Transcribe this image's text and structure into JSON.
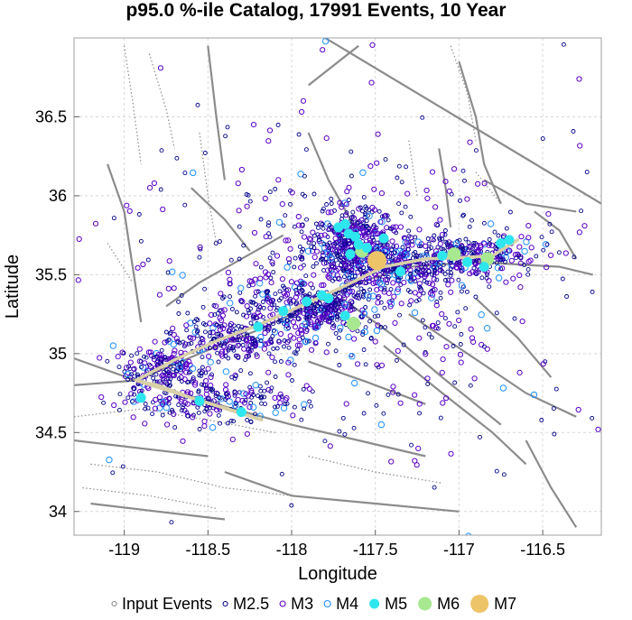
{
  "chart_data": {
    "type": "scatter",
    "title": "p95.0 %-ile Catalog, 17991 Events, 10 Year",
    "xlabel": "Longitude",
    "ylabel": "Latitude",
    "xlim": [
      -119.3,
      -116.15
    ],
    "ylim": [
      33.85,
      37.0
    ],
    "xticks": [
      -119,
      -118.5,
      -118,
      -117.5,
      -117,
      -116.5
    ],
    "yticks": [
      34,
      34.5,
      35,
      35.5,
      36,
      36.5
    ],
    "xtick_labels": [
      "-119",
      "-118.5",
      "-118",
      "-117.5",
      "-117",
      "-116.5"
    ],
    "ytick_labels": [
      "34",
      "34.5",
      "35",
      "35.5",
      "36",
      "36.5"
    ],
    "grid": true,
    "legend": {
      "placement": "bottom",
      "entries": [
        {
          "label": "Input Events",
          "color": "#888888",
          "filled": false
        },
        {
          "label": "M2.5",
          "color": "#00008b",
          "filled": false
        },
        {
          "label": "M3",
          "color": "#5a00c8",
          "filled": false
        },
        {
          "label": "M4",
          "color": "#1e90ff",
          "filled": false
        },
        {
          "label": "M5",
          "color": "#2ee6ee",
          "filled": true
        },
        {
          "label": "M6",
          "color": "#a8e890",
          "filled": true
        },
        {
          "label": "M7",
          "color": "#eec468",
          "filled": true
        }
      ]
    },
    "rupture_trace": [
      [
        -118.93,
        34.83
      ],
      [
        -118.8,
        34.8
      ],
      [
        -118.6,
        34.72
      ],
      [
        -118.38,
        34.65
      ],
      [
        -118.18,
        34.58
      ],
      [
        -118.93,
        34.83
      ],
      [
        -118.7,
        34.96
      ],
      [
        -118.45,
        35.08
      ],
      [
        -118.2,
        35.18
      ],
      [
        -117.95,
        35.3
      ],
      [
        -117.7,
        35.42
      ],
      [
        -117.45,
        35.55
      ],
      [
        -117.2,
        35.6
      ],
      [
        -116.95,
        35.61
      ],
      [
        -116.8,
        35.62
      ],
      [
        -116.65,
        35.72
      ]
    ],
    "large_events": [
      {
        "lon": -117.49,
        "lat": 35.59,
        "class": "M7"
      },
      {
        "lon": -117.58,
        "lat": 35.65,
        "class": "M6"
      },
      {
        "lon": -117.63,
        "lat": 35.19,
        "class": "M6"
      },
      {
        "lon": -116.83,
        "lat": 35.6,
        "class": "M6"
      },
      {
        "lon": -117.03,
        "lat": 35.63,
        "class": "M6"
      },
      {
        "lon": -117.68,
        "lat": 35.82,
        "class": "M5"
      },
      {
        "lon": -117.66,
        "lat": 35.76,
        "class": "M5"
      },
      {
        "lon": -117.6,
        "lat": 35.69,
        "class": "M5"
      },
      {
        "lon": -117.55,
        "lat": 35.67,
        "class": "M5"
      },
      {
        "lon": -117.72,
        "lat": 35.8,
        "class": "M5"
      },
      {
        "lon": -117.62,
        "lat": 35.74,
        "class": "M5"
      },
      {
        "lon": -117.91,
        "lat": 35.33,
        "class": "M5"
      },
      {
        "lon": -117.82,
        "lat": 35.37,
        "class": "M5"
      },
      {
        "lon": -117.78,
        "lat": 35.35,
        "class": "M5"
      },
      {
        "lon": -117.68,
        "lat": 35.24,
        "class": "M5"
      },
      {
        "lon": -116.85,
        "lat": 35.55,
        "class": "M5"
      },
      {
        "lon": -116.7,
        "lat": 35.72,
        "class": "M5"
      },
      {
        "lon": -116.75,
        "lat": 35.7,
        "class": "M5"
      },
      {
        "lon": -117.35,
        "lat": 35.52,
        "class": "M5"
      },
      {
        "lon": -118.9,
        "lat": 34.72,
        "class": "M5"
      },
      {
        "lon": -118.55,
        "lat": 34.7,
        "class": "M5"
      },
      {
        "lon": -118.3,
        "lat": 34.63,
        "class": "M5"
      },
      {
        "lon": -118.2,
        "lat": 35.17,
        "class": "M5"
      },
      {
        "lon": -118.05,
        "lat": 35.27,
        "class": "M5"
      },
      {
        "lon": -117.65,
        "lat": 35.63,
        "class": "M5"
      },
      {
        "lon": -117.45,
        "lat": 35.73,
        "class": "M5"
      },
      {
        "lon": -117.1,
        "lat": 35.62,
        "class": "M5"
      },
      {
        "lon": -116.95,
        "lat": 35.58,
        "class": "M5"
      }
    ],
    "clusters": [
      {
        "lon": -117.65,
        "lat": 35.68,
        "slon": 0.14,
        "slat": 0.13,
        "n": 420
      },
      {
        "lon": -117.4,
        "lat": 35.55,
        "slon": 0.2,
        "slat": 0.08,
        "n": 240
      },
      {
        "lon": -116.95,
        "lat": 35.62,
        "slon": 0.22,
        "slat": 0.07,
        "n": 260
      },
      {
        "lon": -117.9,
        "lat": 35.3,
        "slon": 0.22,
        "slat": 0.09,
        "n": 240
      },
      {
        "lon": -118.35,
        "lat": 35.1,
        "slon": 0.22,
        "slat": 0.08,
        "n": 220
      },
      {
        "lon": -118.75,
        "lat": 34.9,
        "slon": 0.15,
        "slat": 0.07,
        "n": 170
      },
      {
        "lon": -118.5,
        "lat": 34.7,
        "slon": 0.25,
        "slat": 0.06,
        "n": 200
      },
      {
        "lon": -117.75,
        "lat": 35.28,
        "slon": 0.09,
        "slat": 0.07,
        "n": 70
      },
      {
        "lon": -117.7,
        "lat": 35.45,
        "slon": 0.5,
        "slat": 0.42,
        "n": 320
      },
      {
        "lon": -117.5,
        "lat": 35.35,
        "slon": 0.9,
        "slat": 0.6,
        "n": 260
      }
    ],
    "faults": {
      "color": "#8c8c8c",
      "solid": [
        [
          [
            -118.93,
            34.83
          ],
          [
            -118.6,
            34.73
          ],
          [
            -118.35,
            34.65
          ],
          [
            -118.0,
            34.55
          ],
          [
            -117.6,
            34.45
          ],
          [
            -117.2,
            34.35
          ]
        ],
        [
          [
            -118.93,
            34.83
          ],
          [
            -118.55,
            35.0
          ],
          [
            -118.2,
            35.15
          ],
          [
            -117.9,
            35.3
          ],
          [
            -117.6,
            35.45
          ],
          [
            -117.3,
            35.55
          ],
          [
            -116.9,
            35.58
          ],
          [
            -116.4,
            35.55
          ],
          [
            -116.2,
            35.5
          ]
        ],
        [
          [
            -119.3,
            34.8
          ],
          [
            -118.93,
            34.83
          ]
        ],
        [
          [
            -119.3,
            34.97
          ],
          [
            -118.93,
            34.83
          ]
        ],
        [
          [
            -117.9,
            36.4
          ],
          [
            -117.78,
            36.1
          ],
          [
            -117.7,
            35.95
          ],
          [
            -117.6,
            35.75
          ]
        ],
        [
          [
            -117.12,
            36.3
          ],
          [
            -117.08,
            36.05
          ],
          [
            -117.05,
            35.8
          ]
        ],
        [
          [
            -117.0,
            36.85
          ],
          [
            -116.9,
            36.5
          ],
          [
            -116.85,
            36.2
          ],
          [
            -116.75,
            35.95
          ]
        ],
        [
          [
            -116.55,
            35.9
          ],
          [
            -116.4,
            35.78
          ],
          [
            -116.3,
            35.6
          ]
        ],
        [
          [
            -117.7,
            35.35
          ],
          [
            -117.4,
            35.12
          ],
          [
            -117.1,
            34.85
          ],
          [
            -116.75,
            34.55
          ]
        ],
        [
          [
            -117.45,
            35.05
          ],
          [
            -117.1,
            34.75
          ],
          [
            -116.8,
            34.5
          ],
          [
            -116.6,
            34.3
          ]
        ],
        [
          [
            -117.3,
            35.25
          ],
          [
            -116.95,
            35.0
          ],
          [
            -116.6,
            34.75
          ],
          [
            -116.3,
            34.6
          ]
        ],
        [
          [
            -116.9,
            35.35
          ],
          [
            -116.65,
            35.1
          ],
          [
            -116.45,
            34.85
          ]
        ],
        [
          [
            -118.75,
            35.3
          ],
          [
            -118.55,
            35.45
          ],
          [
            -118.3,
            35.6
          ],
          [
            -118.05,
            35.75
          ]
        ],
        [
          [
            -118.6,
            36.05
          ],
          [
            -118.4,
            35.85
          ],
          [
            -118.25,
            35.65
          ]
        ],
        [
          [
            -119.1,
            36.2
          ],
          [
            -119.0,
            35.9
          ],
          [
            -118.95,
            35.55
          ],
          [
            -118.9,
            35.2
          ]
        ],
        [
          [
            -118.5,
            36.95
          ],
          [
            -118.45,
            36.5
          ],
          [
            -118.4,
            36.1
          ]
        ],
        [
          [
            -117.9,
            36.7
          ],
          [
            -117.6,
            36.95
          ]
        ],
        [
          [
            -116.85,
            36.1
          ],
          [
            -116.6,
            35.95
          ],
          [
            -116.3,
            35.9
          ]
        ],
        [
          [
            -118.4,
            34.25
          ],
          [
            -118.0,
            34.1
          ],
          [
            -117.5,
            34.05
          ],
          [
            -117.0,
            34.0
          ]
        ],
        [
          [
            -119.3,
            34.45
          ],
          [
            -118.9,
            34.4
          ],
          [
            -118.5,
            34.35
          ]
        ],
        [
          [
            -119.2,
            34.05
          ],
          [
            -118.8,
            34.0
          ],
          [
            -118.4,
            33.95
          ]
        ],
        [
          [
            -116.6,
            34.45
          ],
          [
            -116.45,
            34.15
          ],
          [
            -116.3,
            33.9
          ]
        ],
        [
          [
            -117.9,
            34.95
          ],
          [
            -117.55,
            34.82
          ],
          [
            -117.2,
            34.68
          ]
        ],
        [
          [
            -117.8,
            37.0
          ],
          [
            -116.15,
            35.95
          ]
        ]
      ],
      "dotted": [
        [
          [
            -119.3,
            34.6
          ],
          [
            -118.9,
            34.65
          ],
          [
            -118.5,
            34.58
          ],
          [
            -118.1,
            34.5
          ]
        ],
        [
          [
            -119.2,
            34.3
          ],
          [
            -118.8,
            34.25
          ],
          [
            -118.4,
            34.15
          ],
          [
            -118.0,
            34.1
          ]
        ],
        [
          [
            -119.25,
            34.15
          ],
          [
            -118.85,
            34.1
          ],
          [
            -118.45,
            34.02
          ]
        ],
        [
          [
            -119.0,
            36.95
          ],
          [
            -118.95,
            36.6
          ],
          [
            -118.9,
            36.2
          ]
        ],
        [
          [
            -118.85,
            36.9
          ],
          [
            -118.75,
            36.55
          ],
          [
            -118.7,
            36.3
          ]
        ],
        [
          [
            -118.55,
            36.4
          ],
          [
            -118.5,
            36.0
          ],
          [
            -118.45,
            35.7
          ]
        ],
        [
          [
            -117.3,
            36.35
          ],
          [
            -117.25,
            36.0
          ]
        ],
        [
          [
            -117.05,
            36.95
          ],
          [
            -116.95,
            36.65
          ],
          [
            -116.9,
            36.35
          ]
        ],
        [
          [
            -116.9,
            36.15
          ],
          [
            -116.75,
            35.95
          ]
        ],
        [
          [
            -117.9,
            34.35
          ],
          [
            -117.5,
            34.25
          ],
          [
            -117.1,
            34.18
          ]
        ],
        [
          [
            -119.1,
            35.7
          ],
          [
            -118.95,
            35.45
          ]
        ]
      ]
    }
  }
}
